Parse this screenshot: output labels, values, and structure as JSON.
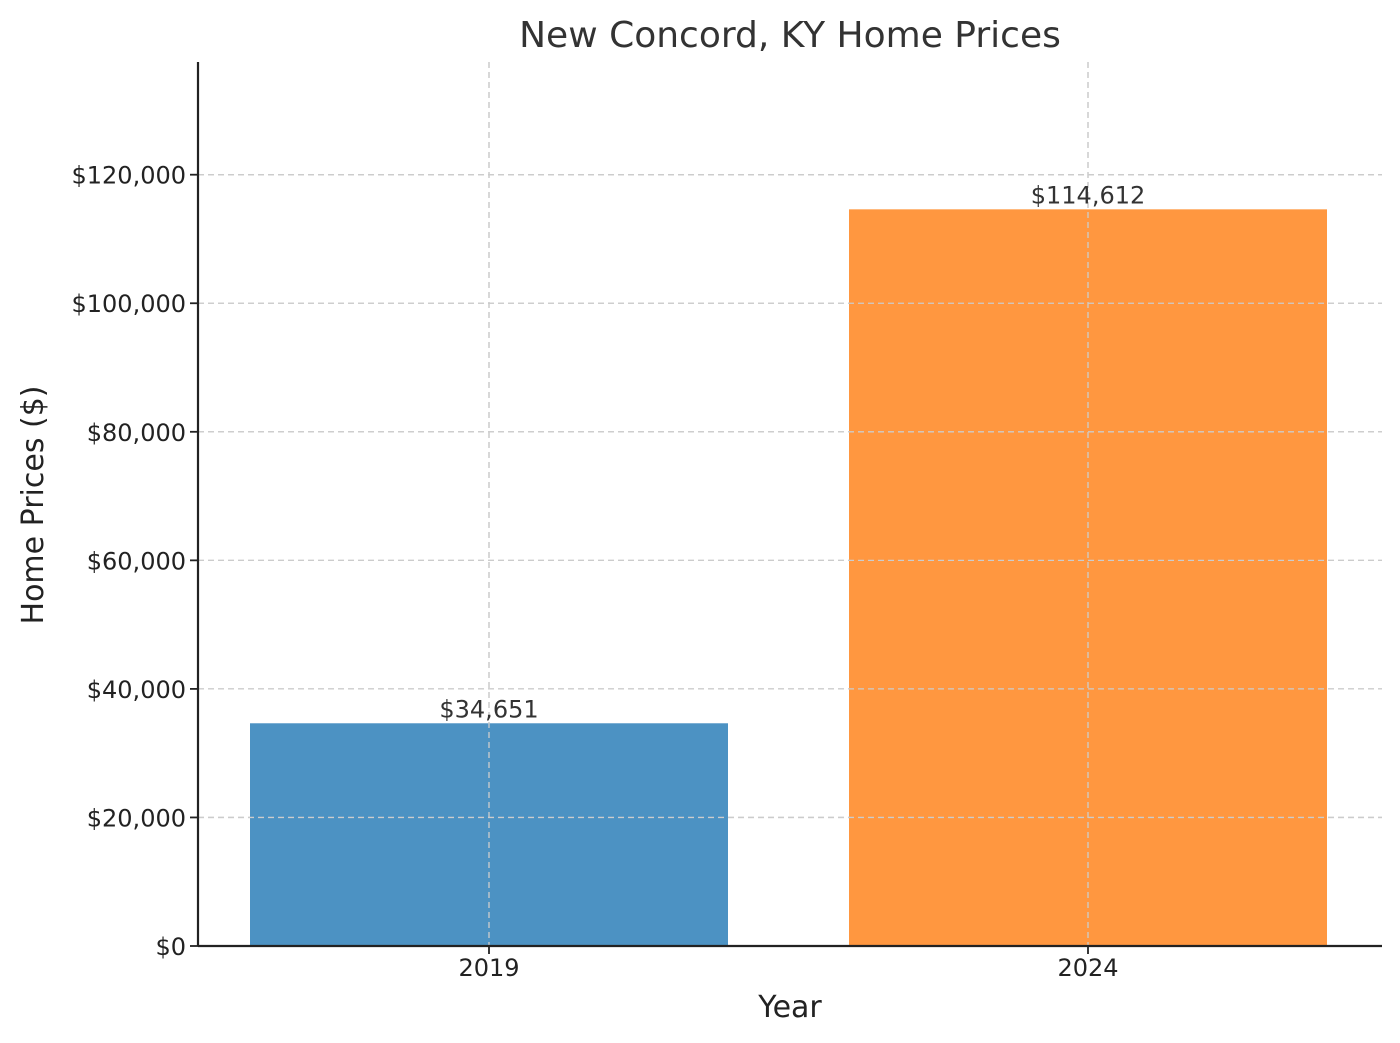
{
  "chart_data": {
    "type": "bar",
    "title": "New Concord, KY Home Prices",
    "xlabel": "Year",
    "ylabel": "Home Prices ($)",
    "categories": [
      "2019",
      "2024"
    ],
    "values": [
      34651,
      114612
    ],
    "value_labels": [
      "$34,651",
      "$114,612"
    ],
    "colors": [
      "#4c92c3",
      "#ff9740"
    ],
    "ylim": [
      0,
      137534
    ],
    "yticks": [
      0,
      20000,
      40000,
      60000,
      80000,
      100000,
      120000
    ],
    "ytick_labels": [
      "$0",
      "$20,000",
      "$40,000",
      "$60,000",
      "$80,000",
      "$100,000",
      "$120,000"
    ],
    "grid": true
  }
}
